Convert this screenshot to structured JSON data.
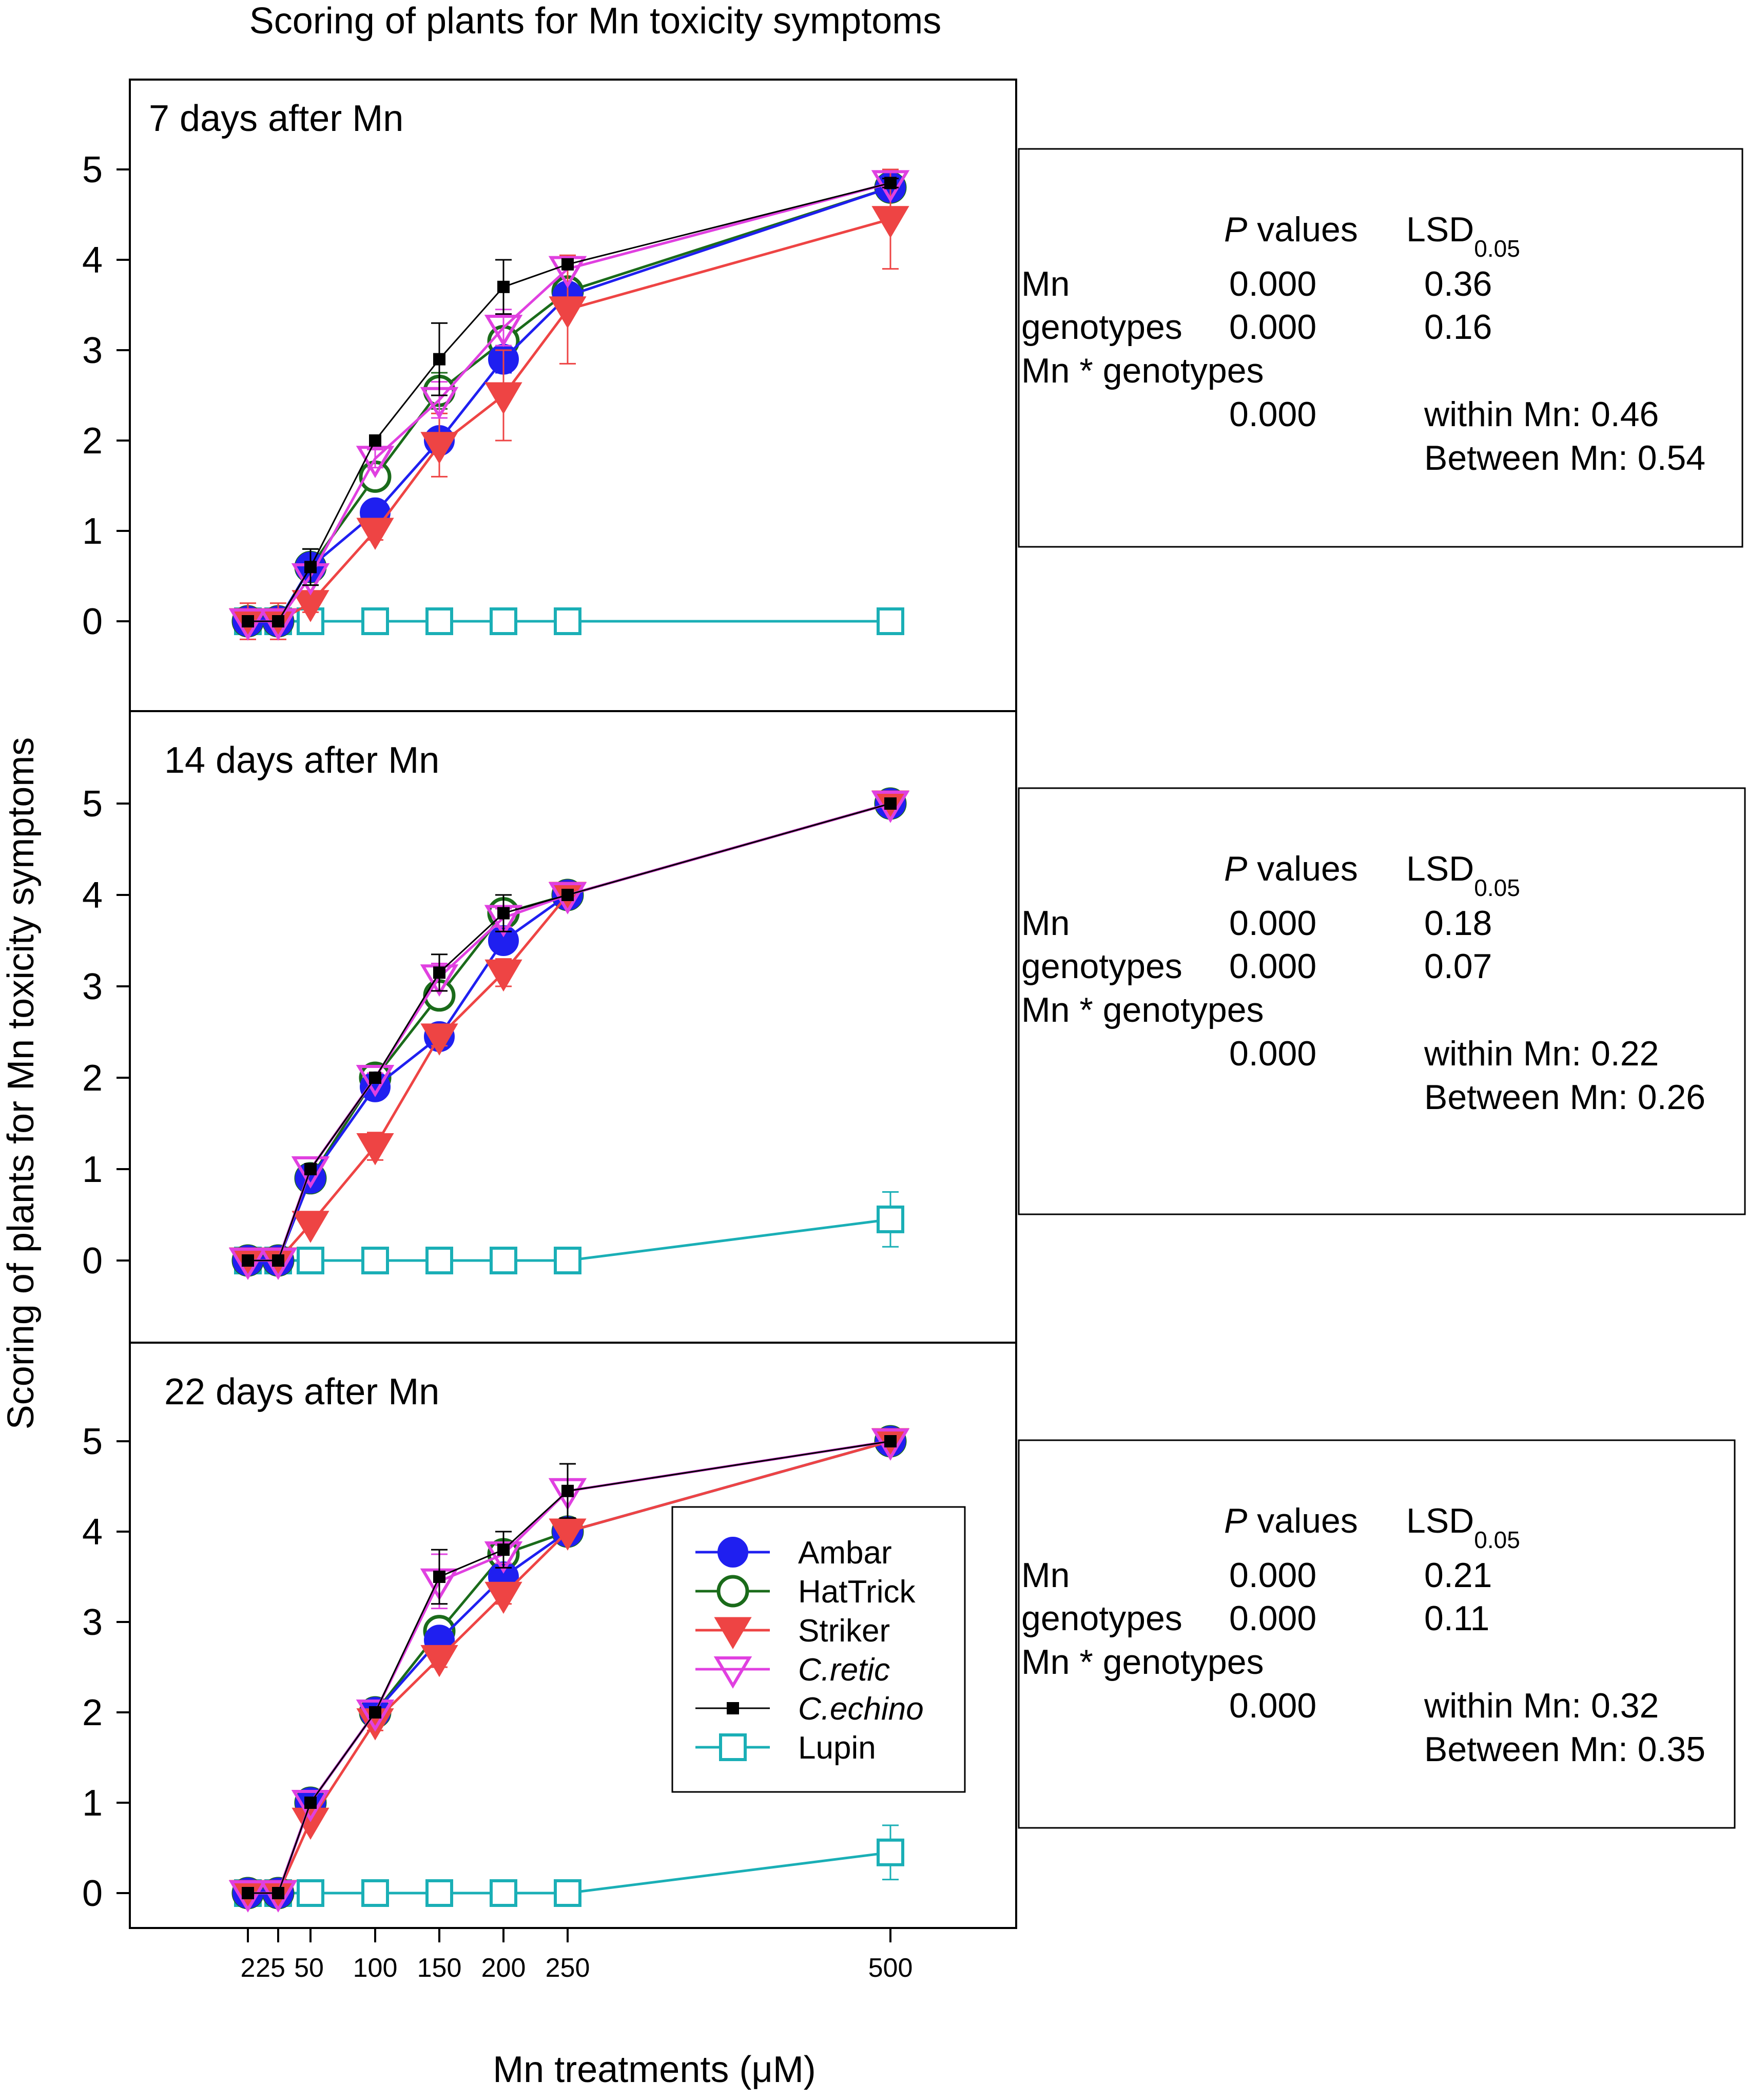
{
  "chart_data": {
    "type": "line",
    "title": "Scoring of plants for Mn toxicity symptoms",
    "xlabel": "Mn treatments (μM)",
    "ylabel": "Scoring of plants for Mn toxicity symptoms",
    "x": [
      2,
      25,
      50,
      100,
      150,
      200,
      250,
      500
    ],
    "xtick_labels": [
      "2",
      "25",
      "50",
      "100",
      "150",
      "200",
      "250",
      "500"
    ],
    "ylim": [
      -1,
      6
    ],
    "yticks": [
      0,
      1,
      2,
      3,
      4,
      5
    ],
    "legend": {
      "placement": "inside-lower-right",
      "entries": [
        {
          "key": "ambar",
          "label": "Ambar",
          "italic": false
        },
        {
          "key": "hattrick",
          "label": "HatTrick",
          "italic": false
        },
        {
          "key": "striker",
          "label": "Striker",
          "italic": false
        },
        {
          "key": "cretic",
          "label": "C.retic",
          "italic": true
        },
        {
          "key": "cechino",
          "label": "C.echino",
          "italic": true
        },
        {
          "key": "lupin",
          "label": " Lupin",
          "italic": false
        }
      ]
    },
    "styles": {
      "ambar": {
        "color": "#1f1ff0",
        "marker": "filled-circle"
      },
      "hattrick": {
        "color": "#1a6b1a",
        "marker": "open-circle"
      },
      "striker": {
        "color": "#ee4444",
        "marker": "filled-triangle-down"
      },
      "cretic": {
        "color": "#e040e0",
        "marker": "open-triangle-down"
      },
      "cechino": {
        "color": "#000000",
        "marker": "filled-square"
      },
      "lupin": {
        "color": "#1aafb6",
        "marker": "open-square"
      }
    },
    "panels": [
      {
        "label": "7 days after Mn",
        "series": [
          {
            "key": "ambar",
            "values": [
              0,
              0,
              0.6,
              1.2,
              2.0,
              2.9,
              3.6,
              4.8
            ],
            "errors": [
              0,
              0,
              0,
              0.1,
              0.1,
              0.15,
              0,
              0.1
            ]
          },
          {
            "key": "hattrick",
            "values": [
              0,
              0,
              0.6,
              1.6,
              2.55,
              3.1,
              3.65,
              4.8
            ],
            "errors": [
              0,
              0,
              0.2,
              0.1,
              0.2,
              0.15,
              0,
              0.1
            ]
          },
          {
            "key": "striker",
            "values": [
              0,
              0,
              0.2,
              1.0,
              1.95,
              2.5,
              3.45,
              4.45
            ],
            "errors": [
              0.2,
              0.2,
              0.1,
              0.1,
              0.35,
              0.5,
              0.6,
              0.55
            ]
          },
          {
            "key": "cretic",
            "values": [
              0,
              0,
              0.5,
              1.8,
              2.45,
              3.25,
              3.9,
              4.85
            ],
            "errors": [
              0,
              0,
              0,
              0.1,
              0.2,
              0.2,
              0,
              0.05
            ]
          },
          {
            "key": "cechino",
            "values": [
              0,
              0,
              0.6,
              2.0,
              2.9,
              3.7,
              3.95,
              4.85
            ],
            "errors": [
              0,
              0,
              0.2,
              0,
              0.4,
              0.3,
              0,
              0.05
            ]
          },
          {
            "key": "lupin",
            "values": [
              0,
              0,
              0,
              0,
              0,
              0,
              0,
              0
            ],
            "errors": [
              0,
              0,
              0,
              0,
              0,
              0,
              0,
              0
            ]
          }
        ],
        "stats": {
          "header_p": "values",
          "header_p_italic": "P",
          "header_lsd": "LSD",
          "header_lsd_sub": "0.05",
          "rows": [
            {
              "label": "Mn",
              "p": "0.000",
              "lsd": "0.36"
            },
            {
              "label": "genotypes",
              "p": "0.000",
              "lsd": "0.16"
            }
          ],
          "interaction_label": "Mn * genotypes",
          "interaction_p": "0.000",
          "within": "within Mn: 0.46",
          "between": "Between Mn: 0.54"
        }
      },
      {
        "label": "14 days after Mn",
        "series": [
          {
            "key": "ambar",
            "values": [
              0,
              0,
              0.9,
              1.9,
              2.45,
              3.5,
              4.0,
              5.0
            ],
            "errors": [
              0,
              0,
              0,
              0.1,
              0.05,
              0.1,
              0,
              0
            ]
          },
          {
            "key": "hattrick",
            "values": [
              0,
              0,
              0.9,
              2.0,
              2.9,
              3.8,
              4.0,
              5.0
            ],
            "errors": [
              0,
              0,
              0,
              0.05,
              0.1,
              0.1,
              0,
              0
            ]
          },
          {
            "key": "striker",
            "values": [
              0,
              0,
              0.4,
              1.25,
              2.45,
              3.15,
              4.0,
              5.0
            ],
            "errors": [
              0,
              0,
              0,
              0.15,
              0.1,
              0.15,
              0,
              0
            ]
          },
          {
            "key": "cretic",
            "values": [
              0,
              0,
              1.0,
              2.0,
              3.1,
              3.75,
              4.0,
              5.0
            ],
            "errors": [
              0,
              0,
              0,
              0.05,
              0.15,
              0.1,
              0,
              0
            ]
          },
          {
            "key": "cechino",
            "values": [
              0,
              0,
              1.0,
              2.0,
              3.15,
              3.8,
              4.0,
              5.0
            ],
            "errors": [
              0,
              0,
              0,
              0,
              0.2,
              0.2,
              0,
              0
            ]
          },
          {
            "key": "lupin",
            "values": [
              0,
              0,
              0,
              0,
              0,
              0,
              0,
              0.45
            ],
            "errors": [
              0,
              0,
              0,
              0,
              0,
              0,
              0,
              0.3
            ]
          }
        ],
        "stats": {
          "header_p": "values",
          "header_p_italic": "P",
          "header_lsd": "LSD",
          "header_lsd_sub": "0.05",
          "rows": [
            {
              "label": "Mn",
              "p": "0.000",
              "lsd": "0.18"
            },
            {
              "label": "genotypes",
              "p": "0.000",
              "lsd": "0.07"
            }
          ],
          "interaction_label": "Mn * genotypes",
          "interaction_p": "0.000",
          "within": "within Mn: 0.22",
          "between": "Between Mn: 0.26"
        }
      },
      {
        "label": "22 days after Mn",
        "series": [
          {
            "key": "ambar",
            "values": [
              0,
              0,
              1.0,
              2.0,
              2.8,
              3.5,
              4.0,
              5.0
            ],
            "errors": [
              0,
              0,
              0,
              0,
              0.1,
              0.1,
              0,
              0
            ]
          },
          {
            "key": "hattrick",
            "values": [
              0,
              0,
              1.0,
              2.0,
              2.9,
              3.75,
              4.0,
              5.0
            ],
            "errors": [
              0,
              0,
              0,
              0,
              0.1,
              0.1,
              0,
              0
            ]
          },
          {
            "key": "striker",
            "values": [
              0,
              0,
              0.8,
              1.9,
              2.6,
              3.3,
              4.0,
              5.0
            ],
            "errors": [
              0,
              0,
              0,
              0.1,
              0.1,
              0.1,
              0,
              0
            ]
          },
          {
            "key": "cretic",
            "values": [
              0,
              0,
              1.0,
              2.0,
              3.45,
              3.75,
              4.45,
              5.0
            ],
            "errors": [
              0,
              0,
              0,
              0,
              0.3,
              0.1,
              0.3,
              0
            ]
          },
          {
            "key": "cechino",
            "values": [
              0,
              0,
              1.0,
              2.0,
              3.5,
              3.8,
              4.45,
              5.0
            ],
            "errors": [
              0,
              0,
              0,
              0,
              0.3,
              0.2,
              0.3,
              0
            ]
          },
          {
            "key": "lupin",
            "values": [
              0,
              0,
              0,
              0,
              0,
              0,
              0,
              0.45
            ],
            "errors": [
              0,
              0,
              0,
              0,
              0,
              0,
              0,
              0.3
            ]
          }
        ],
        "stats": {
          "header_p": "values",
          "header_p_italic": "P",
          "header_lsd": "LSD",
          "header_lsd_sub": "0.05",
          "rows": [
            {
              "label": "Mn",
              "p": "0.000",
              "lsd": "0.21"
            },
            {
              "label": "genotypes",
              "p": "0.000",
              "lsd": "0.11"
            }
          ],
          "interaction_label": "Mn * genotypes",
          "interaction_p": "0.000",
          "within": "within Mn: 0.32",
          "between": "Between Mn: 0.35"
        }
      }
    ]
  }
}
